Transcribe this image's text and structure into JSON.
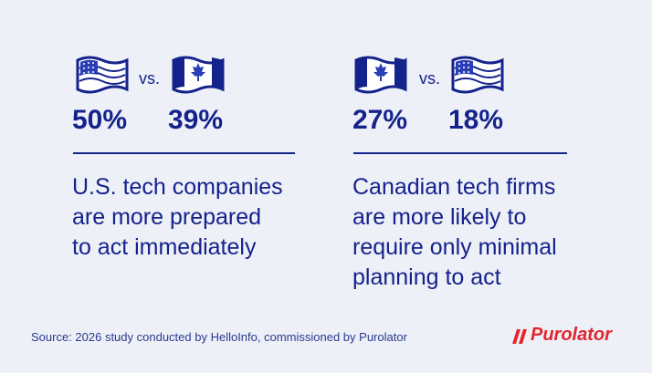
{
  "panels": [
    {
      "left_flag": "US",
      "vs": "vs.",
      "right_flag": "Canada",
      "stats": [
        "50%",
        "39%"
      ],
      "lines": [
        "U.S. tech companies",
        "are more prepared",
        "to act immediately"
      ]
    },
    {
      "left_flag": "Canada",
      "vs": "vs.",
      "right_flag": "US",
      "stats": [
        "27%",
        "18%"
      ],
      "lines": [
        "Canadian tech firms",
        "are more likely to",
        "require only minimal",
        "planning to act"
      ]
    }
  ],
  "source": "Source: 2026 study conducted by HelloInfo, commissioned by Purolator",
  "logo": "Purolator"
}
